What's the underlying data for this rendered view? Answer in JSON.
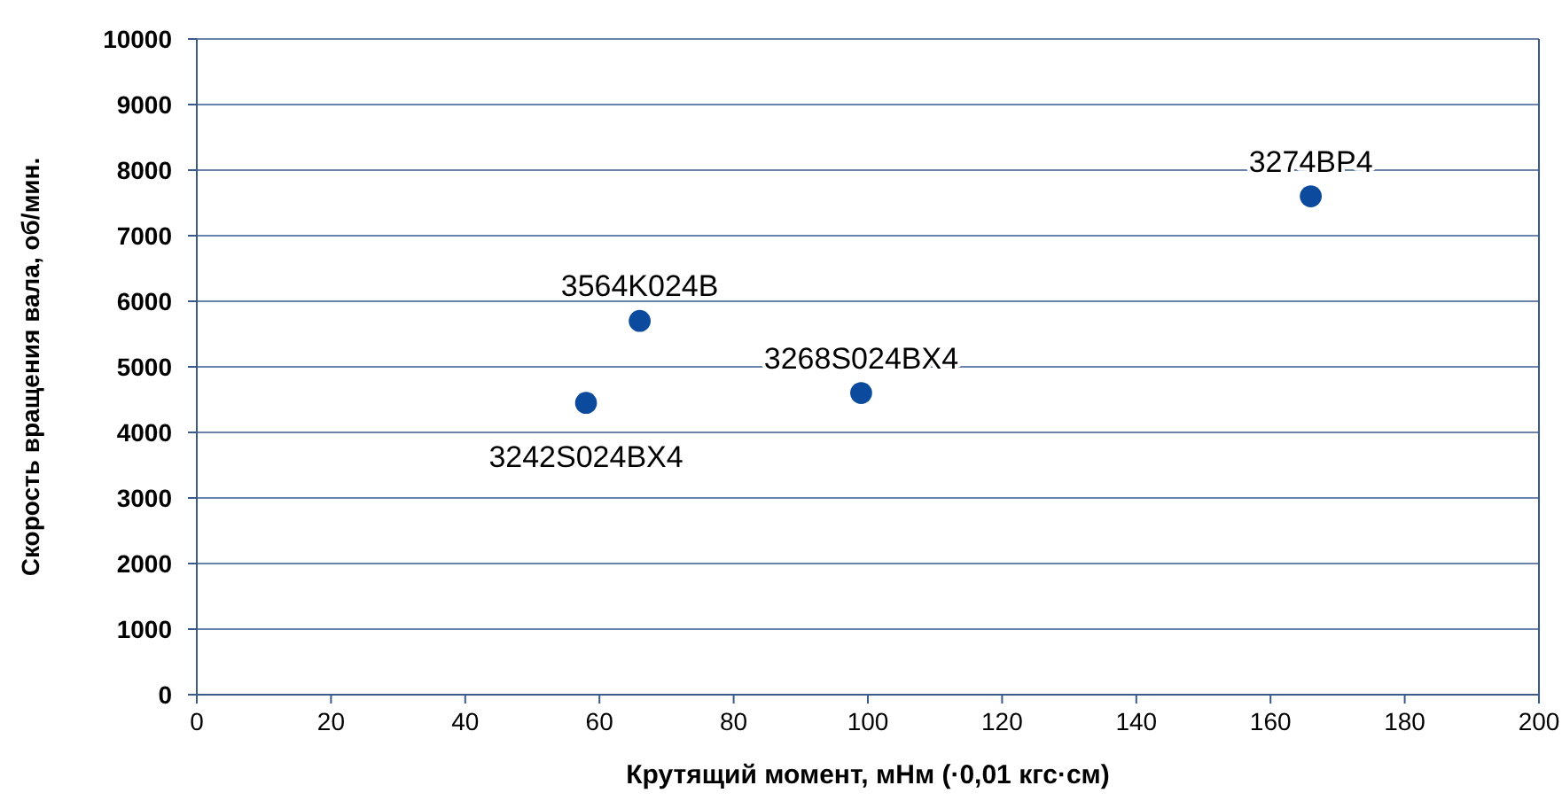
{
  "chart_data": {
    "type": "scatter",
    "xlabel": "Крутящий момент, мНм (·0,01 кгс·см)",
    "ylabel": "Скорость вращения вала, об/мин.",
    "x": [
      58,
      66,
      99,
      166
    ],
    "series": [
      {
        "color": "#0b4a9c",
        "values": [
          4450,
          5700,
          4600,
          7600
        ]
      }
    ],
    "annotations": [
      {
        "text": "3242S024BX4",
        "x": 58,
        "y": 4450
      },
      {
        "text": "3564K024B",
        "x": 66,
        "y": 5700
      },
      {
        "text": "3268S024BX4",
        "x": 99,
        "y": 4600
      },
      {
        "text": "3274BP4",
        "x": 166,
        "y": 7600
      }
    ],
    "xlim": [
      0,
      200
    ],
    "xticks": [
      0,
      20,
      40,
      60,
      80,
      100,
      120,
      140,
      160,
      180,
      200
    ],
    "ylim": [
      0,
      10000
    ],
    "yticks": [
      0,
      1000,
      2000,
      3000,
      4000,
      5000,
      6000,
      7000,
      8000,
      9000,
      10000
    ],
    "grid": "y",
    "marker": "circle"
  }
}
